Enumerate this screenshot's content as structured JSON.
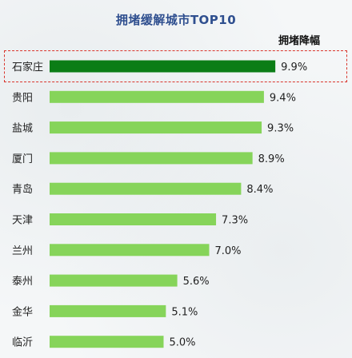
{
  "chart_data": {
    "type": "bar",
    "orientation": "horizontal",
    "title": "拥堵缓解城市TOP10",
    "legend": "拥堵降幅",
    "categories": [
      "石家庄",
      "贵阳",
      "盐城",
      "厦门",
      "青岛",
      "天津",
      "兰州",
      "泰州",
      "金华",
      "临沂"
    ],
    "values": [
      9.9,
      9.4,
      9.3,
      8.9,
      8.4,
      7.3,
      7.0,
      5.6,
      5.1,
      5.0
    ],
    "value_labels": [
      "9.9%",
      "9.4%",
      "9.3%",
      "8.9%",
      "8.4%",
      "7.3%",
      "7.0%",
      "5.6%",
      "5.1%",
      "5.0%"
    ],
    "highlighted_category": "石家庄",
    "colors": {
      "highlight": "#0b7d16",
      "bar": "#86d45a",
      "highlight_border": "#d9342b",
      "title": "#2f4f8f"
    },
    "grid": false
  }
}
